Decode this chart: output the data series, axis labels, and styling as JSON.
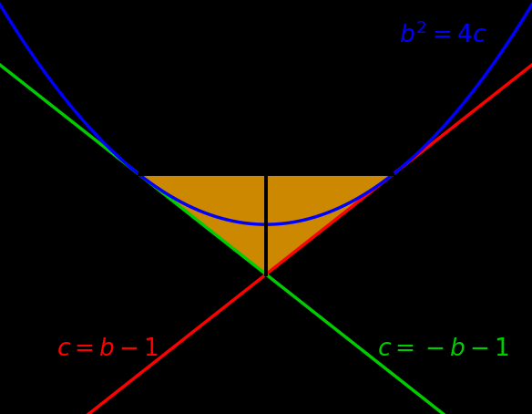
{
  "background_color": "#000000",
  "parabola_color": "#0000ff",
  "red_line_color": "#ff0000",
  "green_line_color": "#00cc00",
  "shade_color": "#cc8800",
  "shade_alpha": 1.0,
  "label_parabola": "b^2 = 4c",
  "label_red": "c = b - 1",
  "label_green": "c = -b - 1",
  "label_fontsize": 19,
  "xmin": -4.2,
  "xmax": 4.2,
  "ymin": -3.8,
  "ymax": 4.5,
  "line_width": 2.5,
  "parabola_lw": 2.5,
  "black_line_lw": 2.8
}
